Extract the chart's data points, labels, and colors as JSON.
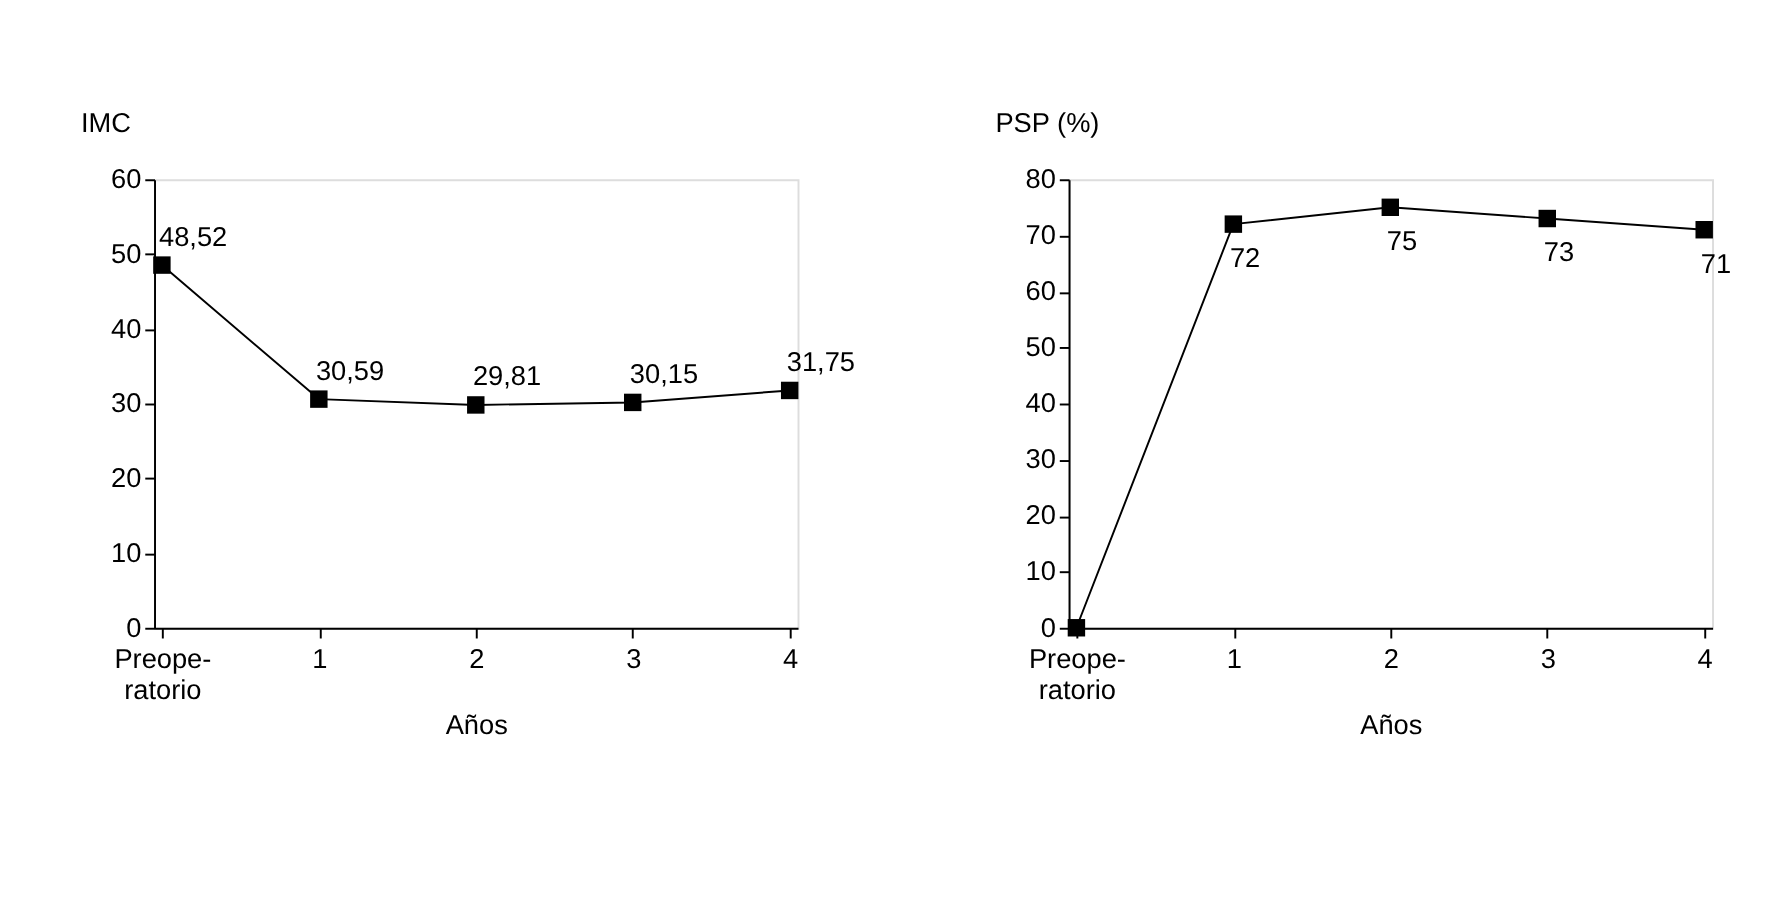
{
  "chart_data": [
    {
      "type": "line",
      "ylabel": "IMC",
      "xlabel": "Años",
      "categories": [
        "Preope-\nratorio",
        "1",
        "2",
        "3",
        "4"
      ],
      "series": [
        {
          "color": "#000000",
          "values": [
            48.52,
            30.59,
            29.81,
            30.15,
            31.75
          ],
          "value_labels": [
            "48,52",
            "30,59",
            "29,81",
            "30,15",
            "31,75"
          ]
        }
      ],
      "ylim": [
        0,
        60
      ],
      "yticks": [
        0,
        10,
        20,
        30,
        40,
        50,
        60
      ],
      "marker": "square",
      "line_style": "solid",
      "grid": false
    },
    {
      "type": "line",
      "ylabel": "PSP (%)",
      "xlabel": "Años",
      "categories": [
        "Preope-\nratorio",
        "1",
        "2",
        "3",
        "4"
      ],
      "series": [
        {
          "color": "#000000",
          "values": [
            0,
            72,
            75,
            73,
            71
          ],
          "value_labels": [
            null,
            "72",
            "75",
            "73",
            "71"
          ]
        }
      ],
      "ylim": [
        0,
        80
      ],
      "yticks": [
        0,
        10,
        20,
        30,
        40,
        50,
        60,
        70,
        80
      ],
      "marker": "square",
      "line_style": "solid",
      "grid": false
    }
  ]
}
